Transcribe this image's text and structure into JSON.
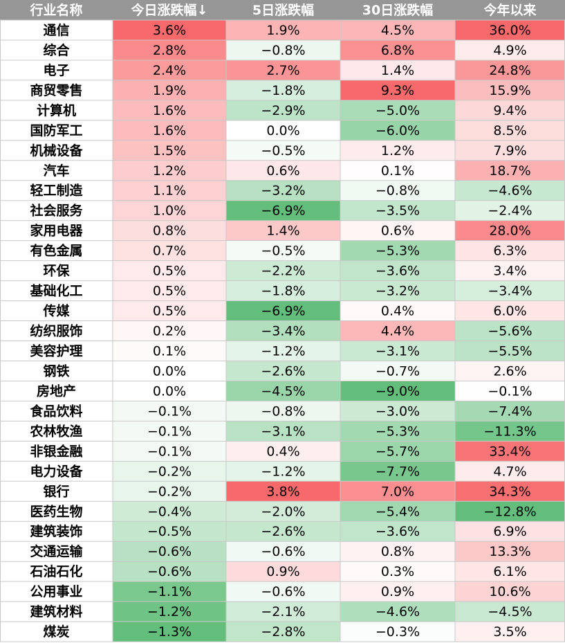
{
  "chart_data": {
    "type": "table",
    "columns": [
      "行业名称",
      "今日涨跌幅↓",
      "5日涨跌幅",
      "30日涨跌幅",
      "今年以来"
    ],
    "rows": [
      {
        "name": "通信",
        "values": [
          3.6,
          1.9,
          4.5,
          36.0
        ]
      },
      {
        "name": "综合",
        "values": [
          2.8,
          -0.8,
          6.8,
          4.9
        ]
      },
      {
        "name": "电子",
        "values": [
          2.4,
          2.7,
          1.4,
          24.8
        ]
      },
      {
        "name": "商贸零售",
        "values": [
          1.9,
          -1.8,
          9.3,
          15.9
        ]
      },
      {
        "name": "计算机",
        "values": [
          1.6,
          -2.9,
          -5.0,
          9.4
        ]
      },
      {
        "name": "国防军工",
        "values": [
          1.6,
          0.0,
          -6.0,
          8.5
        ]
      },
      {
        "name": "机械设备",
        "values": [
          1.5,
          -0.5,
          1.2,
          7.9
        ]
      },
      {
        "name": "汽车",
        "values": [
          1.2,
          0.6,
          0.1,
          18.7
        ]
      },
      {
        "name": "轻工制造",
        "values": [
          1.1,
          -3.2,
          -0.8,
          -4.6
        ]
      },
      {
        "name": "社会服务",
        "values": [
          1.0,
          -6.9,
          -3.5,
          -2.4
        ]
      },
      {
        "name": "家用电器",
        "values": [
          0.8,
          1.4,
          0.6,
          28.0
        ]
      },
      {
        "name": "有色金属",
        "values": [
          0.7,
          -0.5,
          -5.3,
          6.3
        ]
      },
      {
        "name": "环保",
        "values": [
          0.5,
          -2.2,
          -3.6,
          3.4
        ]
      },
      {
        "name": "基础化工",
        "values": [
          0.5,
          -1.8,
          -3.2,
          -3.4
        ]
      },
      {
        "name": "传媒",
        "values": [
          0.5,
          -6.9,
          0.4,
          6.0
        ]
      },
      {
        "name": "纺织服饰",
        "values": [
          0.2,
          -3.4,
          4.4,
          -5.6
        ]
      },
      {
        "name": "美容护理",
        "values": [
          0.1,
          -1.2,
          -3.1,
          -5.5
        ]
      },
      {
        "name": "钢铁",
        "values": [
          0.0,
          -2.6,
          -0.7,
          2.6
        ]
      },
      {
        "name": "房地产",
        "values": [
          0.0,
          -4.5,
          -9.0,
          -0.1
        ]
      },
      {
        "name": "食品饮料",
        "values": [
          -0.1,
          -0.8,
          -3.0,
          -7.4
        ]
      },
      {
        "name": "农林牧渔",
        "values": [
          -0.1,
          -3.1,
          -5.3,
          -11.3
        ]
      },
      {
        "name": "非银金融",
        "values": [
          -0.1,
          0.4,
          -5.7,
          33.4
        ]
      },
      {
        "name": "电力设备",
        "values": [
          -0.2,
          -1.2,
          -7.7,
          4.7
        ]
      },
      {
        "name": "银行",
        "values": [
          -0.2,
          3.8,
          7.0,
          34.3
        ]
      },
      {
        "name": "医药生物",
        "values": [
          -0.4,
          -2.0,
          -5.4,
          -12.8
        ]
      },
      {
        "name": "建筑装饰",
        "values": [
          -0.5,
          -2.6,
          -3.6,
          6.9
        ]
      },
      {
        "name": "交通运输",
        "values": [
          -0.6,
          -0.6,
          0.8,
          13.3
        ]
      },
      {
        "name": "石油石化",
        "values": [
          -0.6,
          0.9,
          0.3,
          6.1
        ]
      },
      {
        "name": "公用事业",
        "values": [
          -1.1,
          -0.6,
          0.9,
          10.6
        ]
      },
      {
        "name": "建筑材料",
        "values": [
          -1.2,
          -2.1,
          -4.6,
          -4.5
        ]
      },
      {
        "name": "煤炭",
        "values": [
          -1.3,
          -2.8,
          -0.3,
          3.5
        ]
      }
    ],
    "unit": "%",
    "colors": {
      "header_bg": "#969696",
      "header_text": "#ffffff",
      "positive_strong": "#f8696b",
      "negative_strong": "#63be7b",
      "neutral": "#ffffff",
      "grid": "#c8c8c8",
      "text": "#000000"
    }
  }
}
